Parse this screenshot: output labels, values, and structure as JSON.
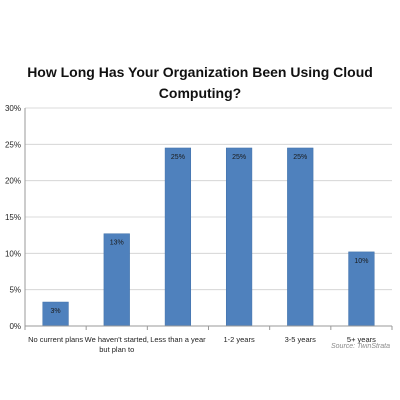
{
  "chart_data": {
    "type": "bar",
    "title_lines": [
      "How Long Has Your Organization Been Using Cloud",
      "Computing?"
    ],
    "categories": [
      [
        "No current plans"
      ],
      [
        "We haven't started,",
        "but plan to"
      ],
      [
        "Less than a year"
      ],
      [
        "1-2 years"
      ],
      [
        "3-5 years"
      ],
      [
        "5+ years"
      ]
    ],
    "values": [
      3.3,
      12.7,
      24.5,
      24.5,
      24.5,
      10.2
    ],
    "data_labels": [
      "3%",
      "13%",
      "25%",
      "25%",
      "25%",
      "10%"
    ],
    "ylim": [
      0,
      30
    ],
    "yticks": [
      0,
      5,
      10,
      15,
      20,
      25,
      30
    ],
    "ytick_labels": [
      "0%",
      "5%",
      "10%",
      "15%",
      "20%",
      "25%",
      "30%"
    ],
    "grid": true,
    "legend": "none",
    "colors": {
      "bar": "#4f81bd",
      "bar_edge": "#3f6fa8",
      "grid": "#cfcfcf",
      "axis": "#999999",
      "text": "#222222"
    },
    "source": "Source: TwinStrata"
  }
}
